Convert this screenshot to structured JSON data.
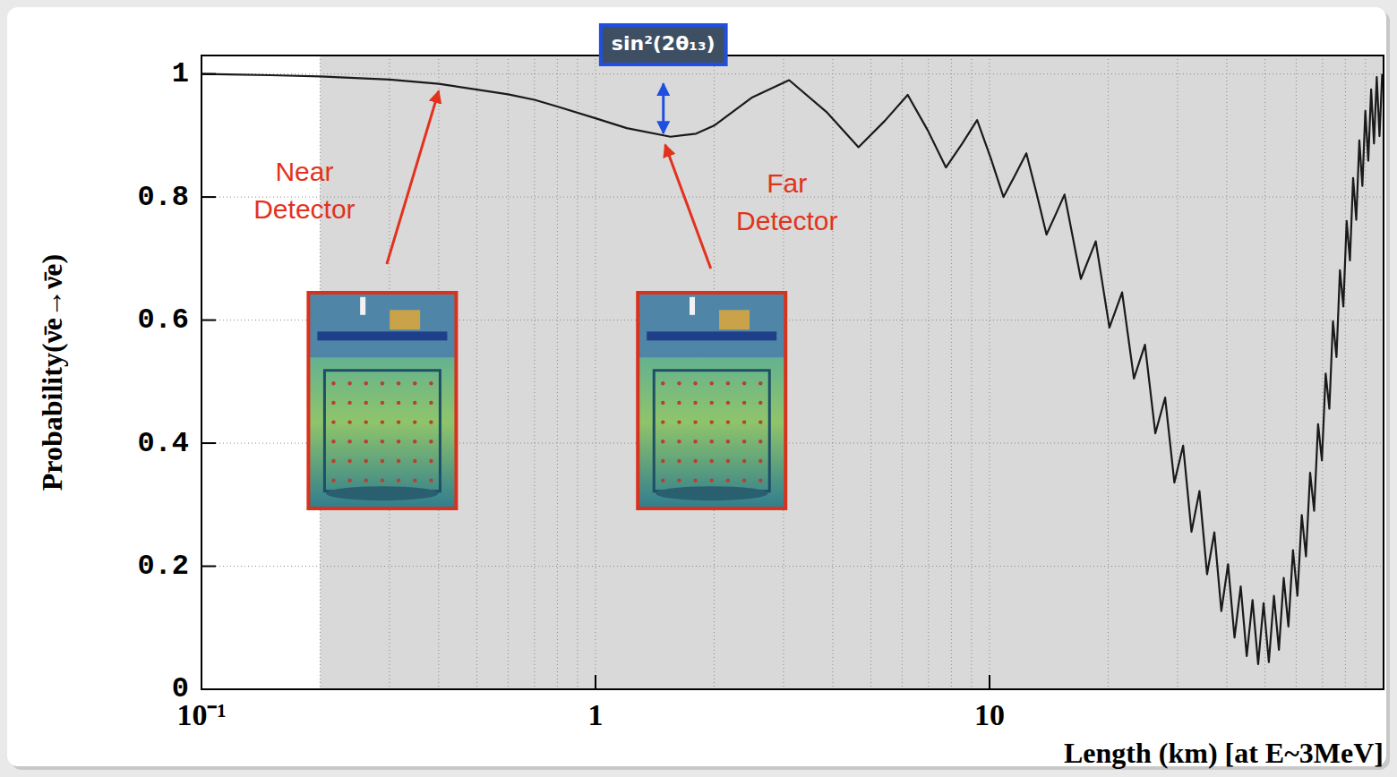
{
  "chart_data": {
    "type": "line",
    "x_label": "Length (km) [at E~3MeV]",
    "y_label": "Probability(ν̄e→ν̄e)",
    "log": "x",
    "grid": true,
    "xlim": [
      0.1,
      100
    ],
    "ylim": [
      0,
      1.03
    ],
    "xticks": [
      {
        "value": 0.1,
        "label": "10⁻¹"
      },
      1,
      10
    ],
    "yticks": [
      0,
      0.2,
      0.4,
      0.6,
      0.8,
      1
    ],
    "shaded_range": [
      0.2,
      100
    ],
    "color": "#1a1a1a",
    "x": [
      0.1,
      0.15,
      0.2,
      0.3,
      0.4,
      0.6,
      0.7,
      0.8,
      1.0,
      1.2,
      1.55,
      1.8,
      2.0,
      2.5,
      3.1,
      3.875,
      4.65,
      5.425,
      6.2,
      6.975,
      7.75,
      8.525,
      9.3,
      10.075,
      10.85,
      11.625,
      12.4,
      13.175,
      13.95,
      14.725,
      15.5,
      17.05,
      18.6,
      20.15,
      21.7,
      23.25,
      24.8,
      26.35,
      27.9,
      29.45,
      31,
      32.55,
      34.1,
      35.65,
      37.2,
      38.75,
      40.3,
      41.85,
      43.4,
      44.95,
      46.5,
      48.05,
      49.6,
      51.15,
      52.7,
      54.25,
      55.8,
      57.35,
      58.9,
      60.45,
      62,
      63.55,
      65.1,
      66.65,
      68.2,
      69.75,
      71.3,
      72.85,
      74.4,
      75.95,
      77.5,
      79.05,
      80.6,
      82.15,
      83.7,
      85.25,
      86.8,
      88.35,
      89.9,
      91.45,
      93,
      94.55,
      96.1,
      97.65,
      99.2
    ],
    "values": [
      1.0,
      0.998,
      0.996,
      0.991,
      0.984,
      0.967,
      0.958,
      0.947,
      0.928,
      0.912,
      0.898,
      0.903,
      0.916,
      0.962,
      0.99,
      0.937,
      0.881,
      0.924,
      0.966,
      0.908,
      0.848,
      0.887,
      0.925,
      0.863,
      0.8,
      0.836,
      0.871,
      0.805,
      0.739,
      0.772,
      0.804,
      0.667,
      0.728,
      0.588,
      0.645,
      0.505,
      0.56,
      0.416,
      0.474,
      0.336,
      0.396,
      0.256,
      0.322,
      0.187,
      0.255,
      0.127,
      0.203,
      0.084,
      0.167,
      0.054,
      0.145,
      0.041,
      0.14,
      0.044,
      0.152,
      0.064,
      0.181,
      0.102,
      0.226,
      0.152,
      0.283,
      0.216,
      0.352,
      0.29,
      0.431,
      0.372,
      0.513,
      0.456,
      0.598,
      0.54,
      0.681,
      0.622,
      0.761,
      0.697,
      0.831,
      0.763,
      0.892,
      0.818,
      0.94,
      0.859,
      0.975,
      0.887,
      0.995,
      0.899,
      1.0
    ],
    "annotations": [
      {
        "text": "Near Detector",
        "x": 0.4,
        "y": 0.984
      },
      {
        "text": "Far Detector",
        "x": 1.55,
        "y": 0.898
      },
      {
        "text": "sin²(2θ₁₃)",
        "x": 1.55,
        "y_from": 0.99,
        "y_to": 0.898
      }
    ]
  }
}
